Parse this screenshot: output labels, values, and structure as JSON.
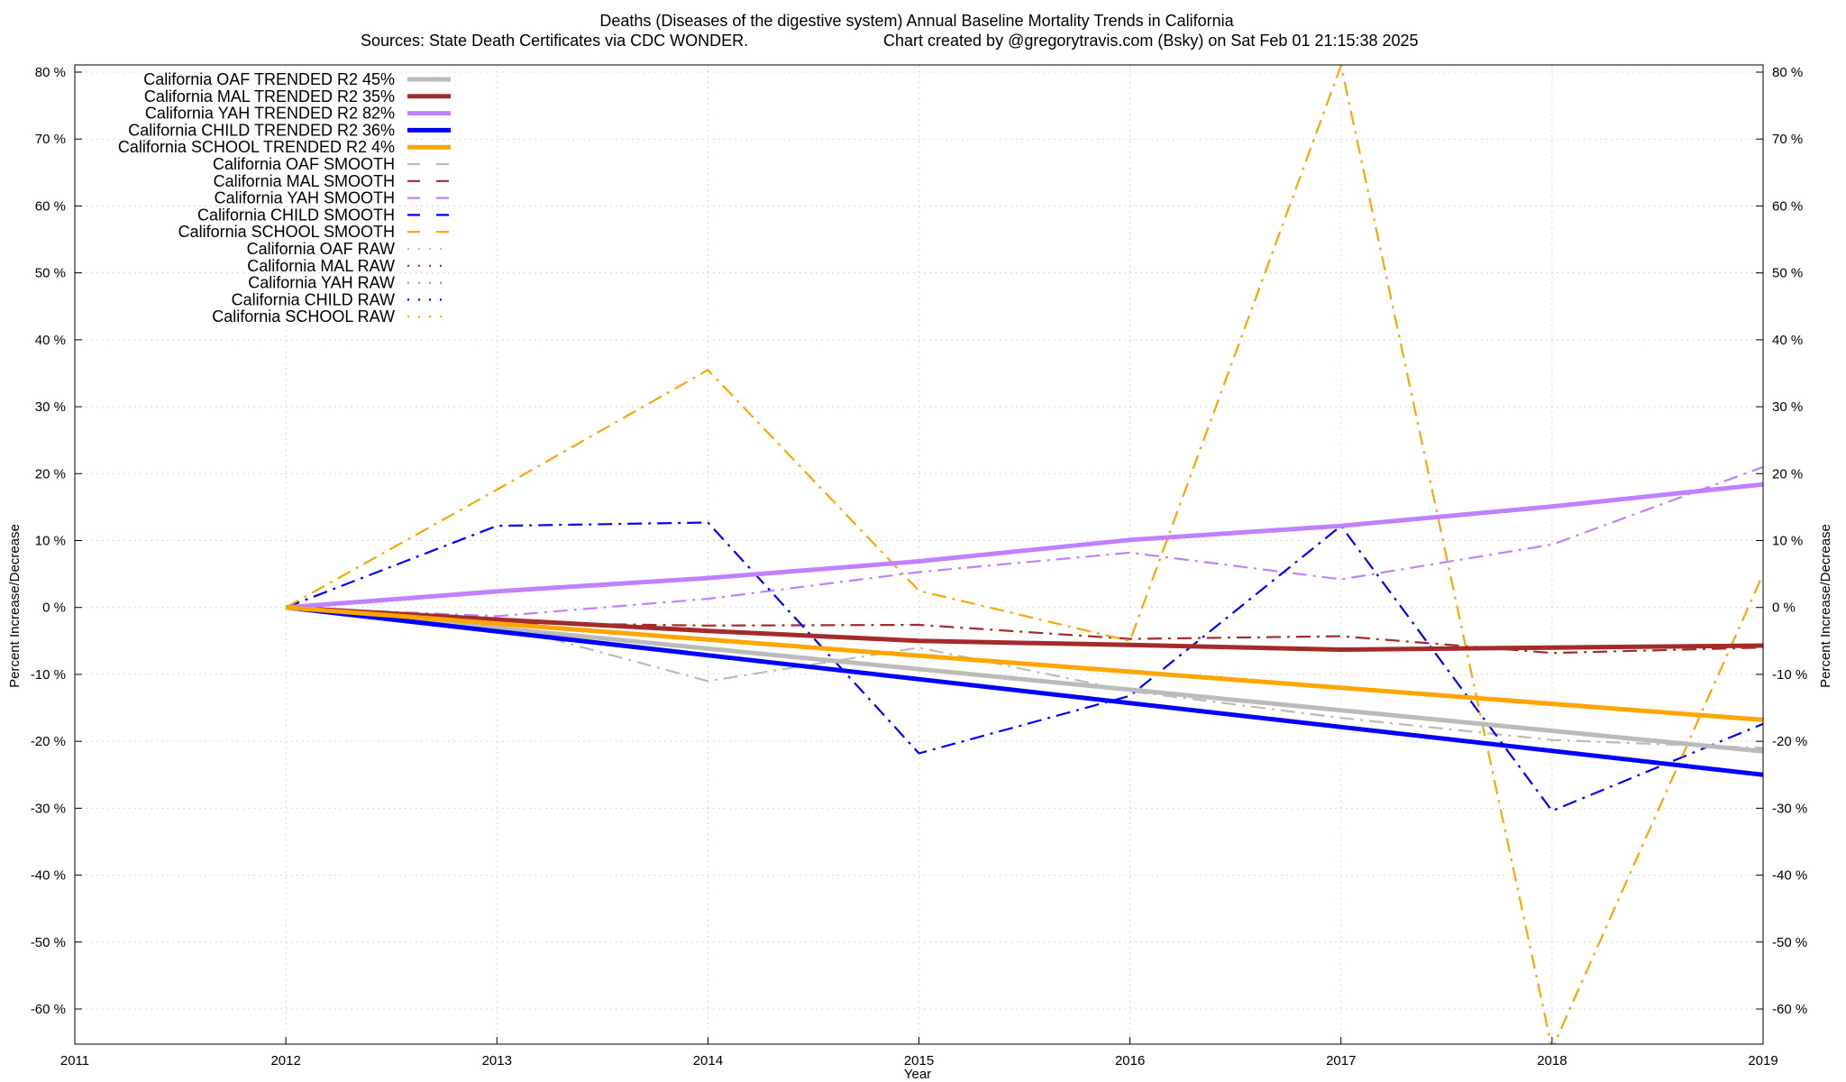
{
  "chart_data": {
    "type": "line",
    "title_line1": "Deaths (Diseases of the digestive system)  Annual Baseline Mortality Trends in California",
    "title_line2_left": "Sources: State Death Certificates via CDC WONDER.",
    "title_line2_right": "Chart created by @gregorytravis.com (Bsky) on Sat Feb 01 21:15:38 2025",
    "xlabel": "Year",
    "ylabel": "Percent Increase/Decrease",
    "ylabel_right": "Percent Increase/Decrease",
    "xlim": [
      2011,
      2019
    ],
    "ylim": [
      -66,
      81
    ],
    "x_ticks": [
      2011,
      2012,
      2013,
      2014,
      2015,
      2016,
      2017,
      2018,
      2019
    ],
    "x_tick_labels": [
      "2011",
      "2012",
      "2013",
      "2014",
      "2015",
      "2016",
      "2017",
      "2018",
      "2019"
    ],
    "y_ticks": [
      80,
      70,
      60,
      50,
      40,
      30,
      20,
      10,
      0,
      -10,
      -20,
      -30,
      -40,
      -50,
      -60
    ],
    "y_tick_labels": [
      "80 %",
      "70 %",
      "60 %",
      "50 %",
      "40 %",
      "30 %",
      "20 %",
      "10 %",
      "0 %",
      "-10 %",
      "-20 %",
      "-30 %",
      "-40 %",
      "-50 %",
      "-60 %"
    ],
    "grid": true,
    "legend_position": "top-left",
    "series": [
      {
        "name": "California OAF TRENDED R2  45%",
        "style": "solid",
        "color": "#bbbbbb",
        "width": 5,
        "x": [
          2012,
          2019
        ],
        "y": [
          0,
          -21.5
        ]
      },
      {
        "name": "California MAL TRENDED R2  35%",
        "style": "solid",
        "color": "#a52a2a",
        "width": 5,
        "x": [
          2012,
          2013,
          2014,
          2015,
          2016,
          2017,
          2018,
          2019
        ],
        "y": [
          0,
          -1.8,
          -3.5,
          -5.0,
          -5.6,
          -6.3,
          -6.0,
          -5.7
        ]
      },
      {
        "name": "California YAH TRENDED R2  82%",
        "style": "solid",
        "color": "#c080ff",
        "width": 5,
        "x": [
          2012,
          2013,
          2014,
          2015,
          2016,
          2017,
          2018,
          2019
        ],
        "y": [
          0,
          2.4,
          4.4,
          6.9,
          10.1,
          12.2,
          15.1,
          18.4
        ]
      },
      {
        "name": "California CHILD TRENDED R2  36%",
        "style": "solid",
        "color": "#0000ff",
        "width": 5,
        "x": [
          2012,
          2019
        ],
        "y": [
          0,
          -25
        ]
      },
      {
        "name": "California SCHOOL TRENDED R2  4%",
        "style": "solid",
        "color": "#ffa500",
        "width": 5,
        "x": [
          2012,
          2019
        ],
        "y": [
          0,
          -16.8
        ]
      },
      {
        "name": "California OAF SMOOTH",
        "style": "dashdot",
        "color": "#bbbbbb",
        "width": 2.2,
        "x": [
          2012,
          2013,
          2014,
          2015,
          2016,
          2017,
          2018,
          2019
        ],
        "y": [
          0,
          -2.5,
          -11,
          -6,
          -12.5,
          -16.5,
          -19.8,
          -21
        ]
      },
      {
        "name": "California MAL SMOOTH",
        "style": "dashdot",
        "color": "#a52a2a",
        "width": 2.2,
        "x": [
          2012,
          2013,
          2014,
          2015,
          2016,
          2017,
          2018,
          2019
        ],
        "y": [
          0,
          -2.3,
          -2.7,
          -2.6,
          -4.7,
          -4.3,
          -6.8,
          -6
        ]
      },
      {
        "name": "California YAH SMOOTH",
        "style": "dashdot",
        "color": "#c080ff",
        "width": 2.2,
        "x": [
          2012,
          2013,
          2014,
          2015,
          2016,
          2017,
          2018,
          2019
        ],
        "y": [
          0,
          -1.3,
          1.3,
          5.3,
          8.2,
          4.2,
          9.4,
          21
        ]
      },
      {
        "name": "California CHILD SMOOTH",
        "style": "dashdot",
        "color": "#0000ff",
        "width": 2.2,
        "x": [
          2012,
          2013,
          2014,
          2015,
          2016,
          2017,
          2018,
          2019
        ],
        "y": [
          0,
          12.2,
          12.7,
          -21.8,
          -13.2,
          12.2,
          -30.4,
          -17.4
        ]
      },
      {
        "name": "California SCHOOL SMOOTH",
        "style": "dashdot",
        "color": "#ffa500",
        "width": 2.2,
        "x": [
          2012,
          2013,
          2014,
          2015,
          2016,
          2017,
          2018,
          2019
        ],
        "y": [
          0,
          17.6,
          35.5,
          2.5,
          -5.0,
          81,
          -66,
          5
        ]
      },
      {
        "name": "California OAF RAW",
        "style": "dotted",
        "color": "#bbbbbb",
        "width": 2.2,
        "x": [],
        "y": []
      },
      {
        "name": "California MAL RAW",
        "style": "dotted",
        "color": "#a52a2a",
        "width": 2.2,
        "x": [],
        "y": []
      },
      {
        "name": "California YAH RAW",
        "style": "dotted",
        "color": "#c080ff",
        "width": 2.2,
        "x": [],
        "y": []
      },
      {
        "name": "California CHILD RAW",
        "style": "dotted",
        "color": "#0000ff",
        "width": 2.2,
        "x": [],
        "y": []
      },
      {
        "name": "California SCHOOL RAW",
        "style": "dotted",
        "color": "#ffa500",
        "width": 2.2,
        "x": [],
        "y": []
      }
    ]
  }
}
